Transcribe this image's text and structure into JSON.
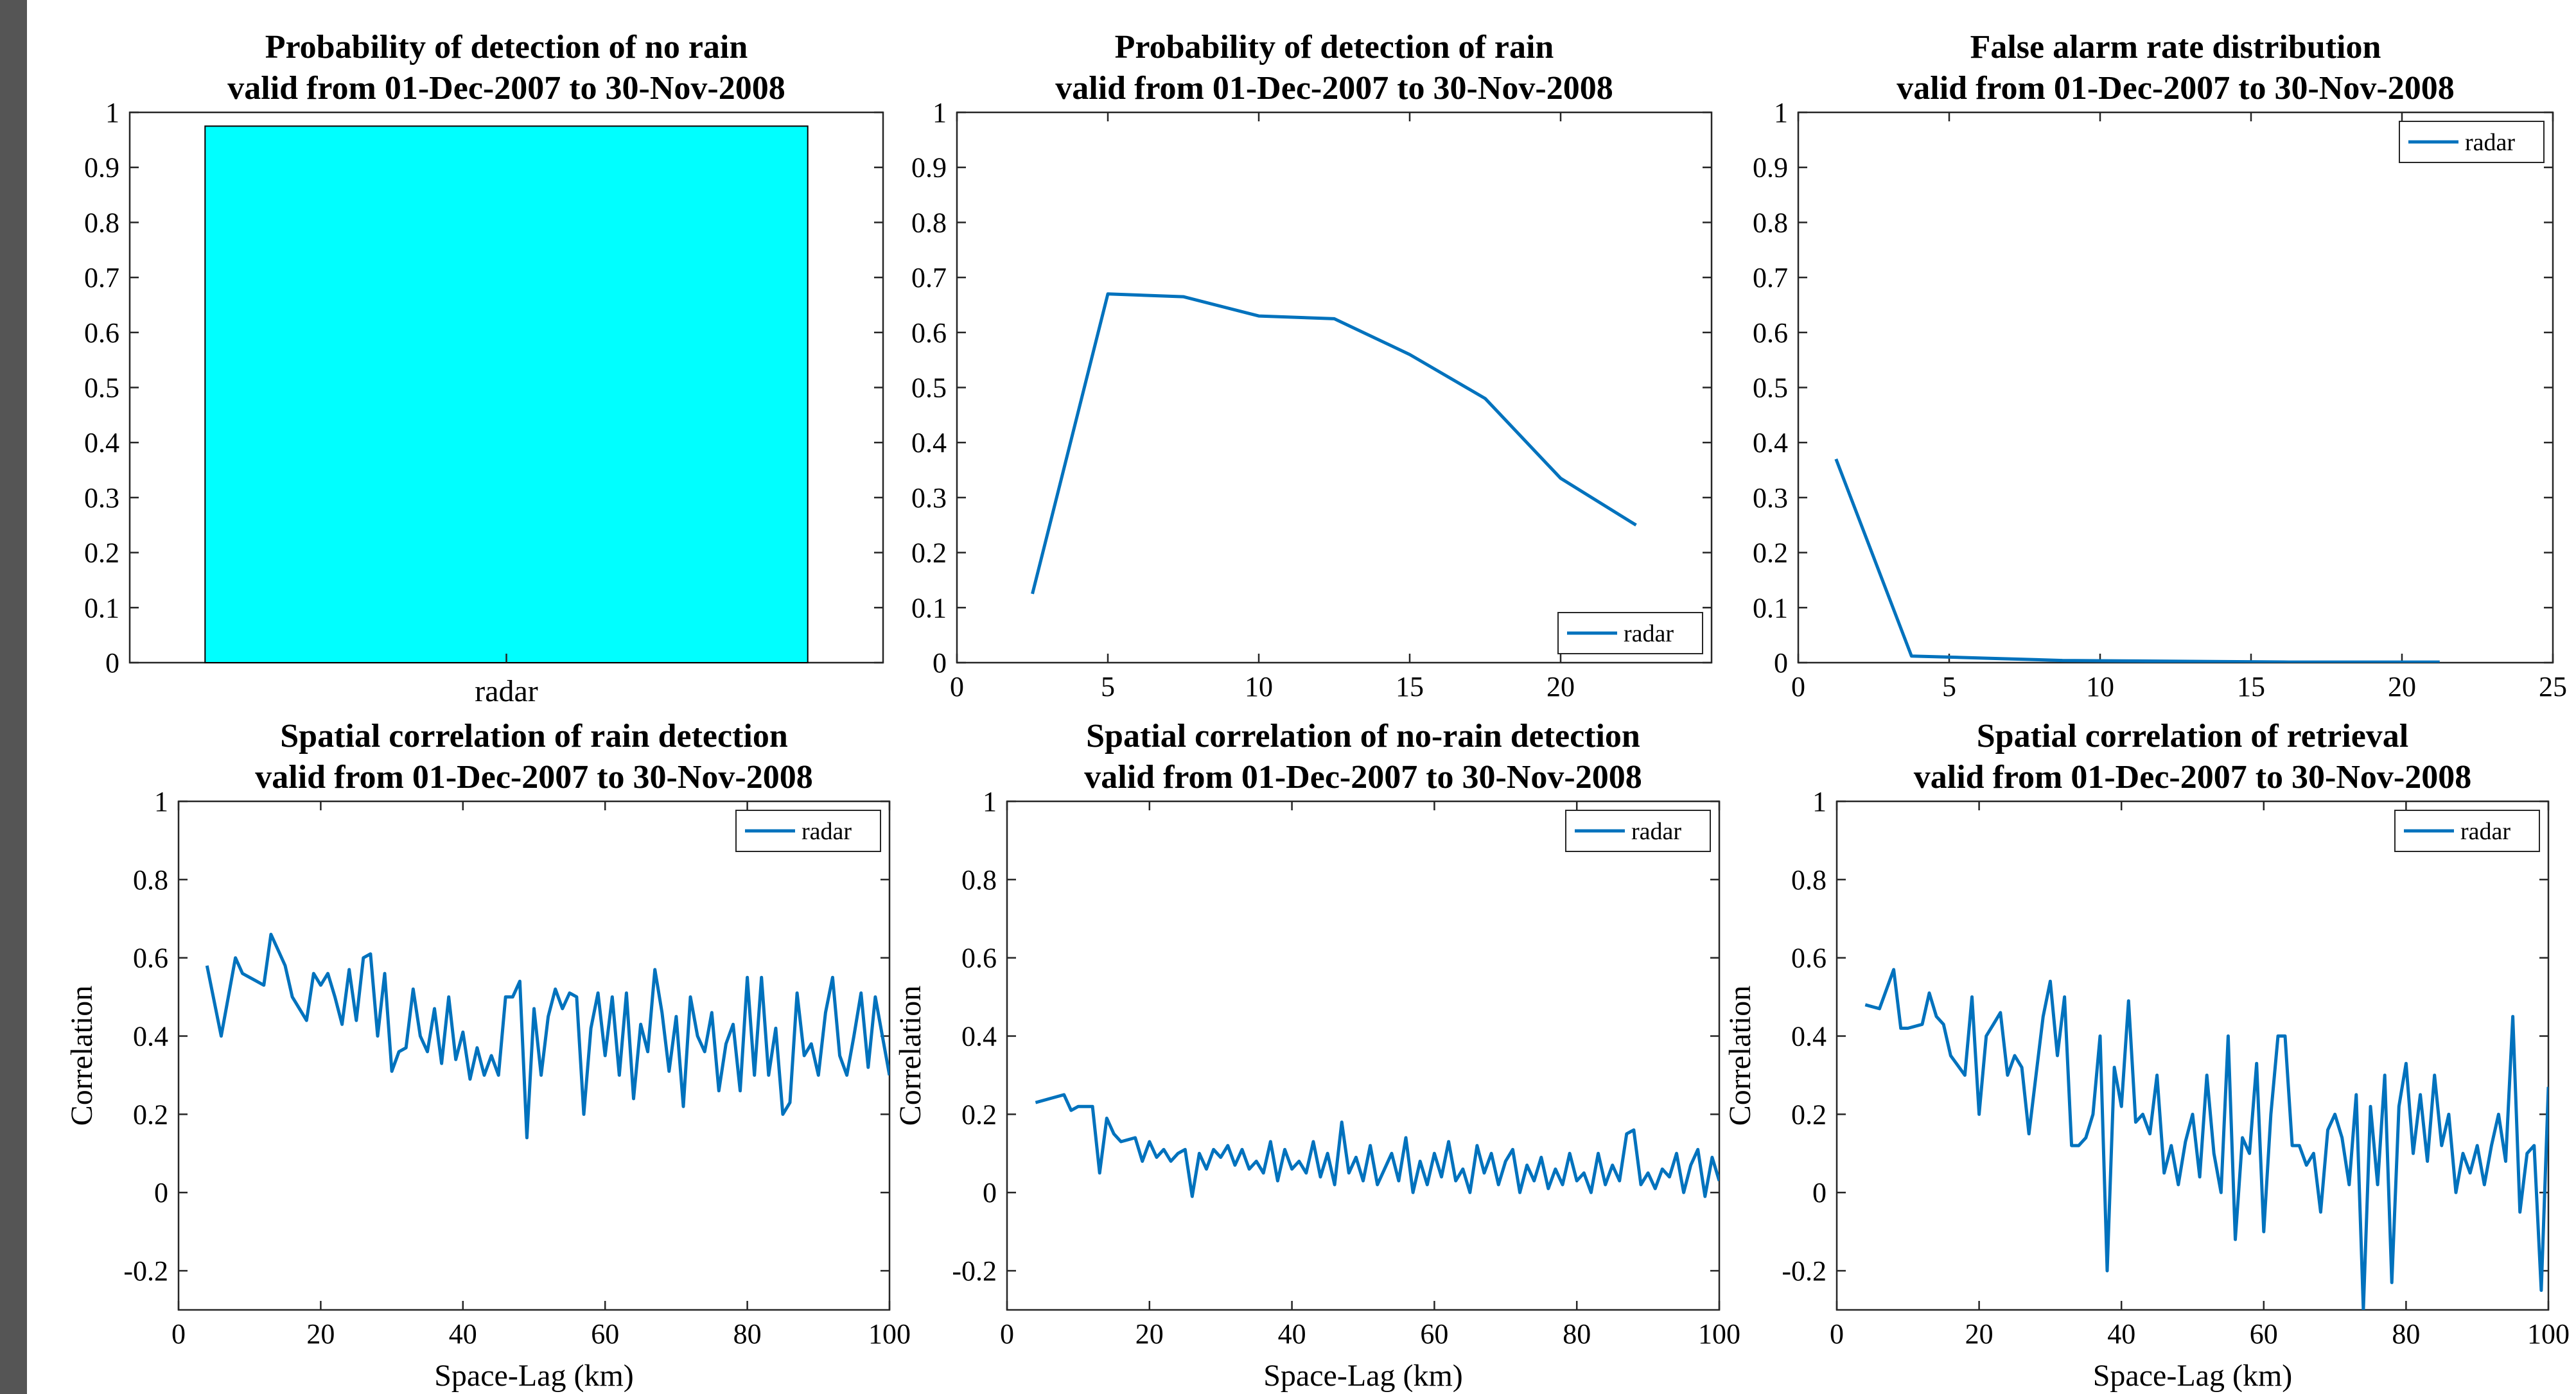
{
  "chart_data": [
    {
      "type": "bar",
      "title": [
        "Probability of detection of no rain",
        "valid from 01-Dec-2007 to 30-Nov-2008"
      ],
      "categories": [
        "radar"
      ],
      "values": [
        0.975
      ],
      "ylim": [
        0,
        1
      ],
      "yticks": [
        "0",
        "0.1",
        "0.2",
        "0.3",
        "0.4",
        "0.5",
        "0.6",
        "0.7",
        "0.8",
        "0.9",
        "1"
      ],
      "bar_color": "#00FFFF",
      "xlabel": "",
      "ylabel": ""
    },
    {
      "type": "line",
      "title": [
        "Probability of detection of rain",
        "valid from 01-Dec-2007 to 30-Nov-2008"
      ],
      "x": [
        2.5,
        5,
        7.5,
        10,
        12.5,
        15,
        17.5,
        20,
        22.5
      ],
      "series": [
        {
          "name": "radar",
          "values": [
            0.125,
            0.67,
            0.665,
            0.63,
            0.625,
            0.56,
            0.48,
            0.335,
            0.25
          ]
        }
      ],
      "xlim": [
        0,
        25
      ],
      "ylim": [
        0,
        1
      ],
      "xticks": [
        "0",
        "5",
        "10",
        "15",
        "20"
      ],
      "yticks": [
        "0",
        "0.1",
        "0.2",
        "0.3",
        "0.4",
        "0.5",
        "0.6",
        "0.7",
        "0.8",
        "0.9",
        "1"
      ],
      "legend": "bottom-right",
      "xlabel": "",
      "ylabel": ""
    },
    {
      "type": "line",
      "title": [
        "False alarm rate distribution",
        "valid from 01-Dec-2007 to 30-Nov-2008"
      ],
      "x": [
        1.25,
        3.75,
        6.25,
        8.75,
        11.25,
        13.75,
        16.25,
        18.75,
        21.25
      ],
      "series": [
        {
          "name": "radar",
          "values": [
            0.37,
            0.012,
            0.008,
            0.004,
            0.003,
            0.002,
            0.001,
            0.001,
            0.001
          ]
        }
      ],
      "xlim": [
        0,
        25
      ],
      "ylim": [
        0,
        1
      ],
      "xticks": [
        "0",
        "5",
        "10",
        "15",
        "20",
        "25"
      ],
      "yticks": [
        "0",
        "0.1",
        "0.2",
        "0.3",
        "0.4",
        "0.5",
        "0.6",
        "0.7",
        "0.8",
        "0.9",
        "1"
      ],
      "legend": "top-right",
      "xlabel": "",
      "ylabel": ""
    },
    {
      "type": "line",
      "title": [
        "Spatial correlation of rain detection",
        "valid from 01-Dec-2007 to 30-Nov-2008"
      ],
      "x": [
        4,
        6,
        8,
        9,
        10,
        12,
        13,
        14,
        15,
        16,
        18,
        19,
        20,
        21,
        22,
        23,
        24,
        25,
        26,
        27,
        28,
        29,
        30,
        31,
        32,
        33,
        34,
        35,
        36,
        37,
        38,
        39,
        40,
        41,
        42,
        43,
        44,
        45,
        46,
        47,
        48,
        49,
        50,
        51,
        52,
        53,
        54,
        55,
        56,
        57,
        58,
        59,
        60,
        61,
        62,
        63,
        64,
        65,
        66,
        67,
        68,
        69,
        70,
        71,
        72,
        73,
        74,
        75,
        76,
        77,
        78,
        79,
        80,
        81,
        82,
        83,
        84,
        85,
        86,
        87,
        88,
        89,
        90,
        91,
        92,
        93,
        94,
        95,
        96,
        97,
        98,
        99,
        100
      ],
      "series": [
        {
          "name": "radar",
          "values": [
            0.58,
            0.4,
            0.6,
            0.56,
            0.55,
            0.53,
            0.66,
            0.62,
            0.58,
            0.5,
            0.44,
            0.56,
            0.53,
            0.56,
            0.5,
            0.43,
            0.57,
            0.44,
            0.6,
            0.61,
            0.4,
            0.56,
            0.31,
            0.36,
            0.37,
            0.52,
            0.4,
            0.36,
            0.47,
            0.33,
            0.5,
            0.34,
            0.41,
            0.29,
            0.37,
            0.3,
            0.35,
            0.3,
            0.5,
            0.5,
            0.54,
            0.14,
            0.47,
            0.3,
            0.45,
            0.52,
            0.47,
            0.51,
            0.5,
            0.2,
            0.42,
            0.51,
            0.35,
            0.5,
            0.3,
            0.51,
            0.24,
            0.43,
            0.36,
            0.57,
            0.46,
            0.31,
            0.45,
            0.22,
            0.5,
            0.4,
            0.36,
            0.46,
            0.26,
            0.38,
            0.43,
            0.26,
            0.55,
            0.3,
            0.55,
            0.3,
            0.42,
            0.2,
            0.23,
            0.51,
            0.35,
            0.38,
            0.3,
            0.46,
            0.55,
            0.35,
            0.3,
            0.4,
            0.51,
            0.32,
            0.5,
            0.4,
            0.3
          ]
        }
      ],
      "xlim": [
        0,
        100
      ],
      "ylim": [
        -0.3,
        1
      ],
      "xticks": [
        "0",
        "20",
        "40",
        "60",
        "80",
        "100"
      ],
      "yticks": [
        "-0.2",
        "0",
        "0.2",
        "0.4",
        "0.6",
        "0.8",
        "1"
      ],
      "legend": "top-right",
      "xlabel": "Space-Lag (km)",
      "ylabel": "Correlation"
    },
    {
      "type": "line",
      "title": [
        "Spatial correlation of no-rain detection",
        "valid from 01-Dec-2007 to 30-Nov-2008"
      ],
      "x": [
        4,
        6,
        8,
        9,
        10,
        12,
        13,
        14,
        15,
        16,
        18,
        19,
        20,
        21,
        22,
        23,
        24,
        25,
        26,
        27,
        28,
        29,
        30,
        31,
        32,
        33,
        34,
        35,
        36,
        37,
        38,
        39,
        40,
        41,
        42,
        43,
        44,
        45,
        46,
        47,
        48,
        49,
        50,
        51,
        52,
        53,
        54,
        55,
        56,
        57,
        58,
        59,
        60,
        61,
        62,
        63,
        64,
        65,
        66,
        67,
        68,
        69,
        70,
        71,
        72,
        73,
        74,
        75,
        76,
        77,
        78,
        79,
        80,
        81,
        82,
        83,
        84,
        85,
        86,
        87,
        88,
        89,
        90,
        91,
        92,
        93,
        94,
        95,
        96,
        97,
        98,
        99,
        100
      ],
      "series": [
        {
          "name": "radar",
          "values": [
            0.23,
            0.24,
            0.25,
            0.21,
            0.22,
            0.22,
            0.05,
            0.19,
            0.15,
            0.13,
            0.14,
            0.08,
            0.13,
            0.09,
            0.11,
            0.08,
            0.1,
            0.11,
            -0.01,
            0.1,
            0.06,
            0.11,
            0.09,
            0.12,
            0.07,
            0.11,
            0.06,
            0.08,
            0.05,
            0.13,
            0.03,
            0.11,
            0.06,
            0.08,
            0.05,
            0.13,
            0.04,
            0.1,
            0.02,
            0.18,
            0.05,
            0.09,
            0.03,
            0.12,
            0.02,
            0.06,
            0.1,
            0.03,
            0.14,
            0.0,
            0.08,
            0.02,
            0.1,
            0.04,
            0.13,
            0.03,
            0.06,
            0.0,
            0.12,
            0.05,
            0.1,
            0.02,
            0.08,
            0.11,
            0.0,
            0.07,
            0.03,
            0.09,
            0.01,
            0.06,
            0.02,
            0.1,
            0.03,
            0.05,
            0.0,
            0.1,
            0.02,
            0.07,
            0.03,
            0.15,
            0.16,
            0.02,
            0.05,
            0.01,
            0.06,
            0.04,
            0.1,
            0.0,
            0.07,
            0.11,
            -0.01,
            0.09,
            0.03
          ]
        }
      ],
      "xlim": [
        0,
        100
      ],
      "ylim": [
        -0.3,
        1
      ],
      "xticks": [
        "0",
        "20",
        "40",
        "60",
        "80",
        "100"
      ],
      "yticks": [
        "-0.2",
        "0",
        "0.2",
        "0.4",
        "0.6",
        "0.8",
        "1"
      ],
      "legend": "top-right",
      "xlabel": "Space-Lag (km)",
      "ylabel": "Correlation"
    },
    {
      "type": "line",
      "title": [
        "Spatial correlation of retrieval",
        "valid from 01-Dec-2007 to 30-Nov-2008"
      ],
      "x": [
        4,
        6,
        8,
        9,
        10,
        12,
        13,
        14,
        15,
        16,
        18,
        19,
        20,
        21,
        22,
        23,
        24,
        25,
        26,
        27,
        28,
        29,
        30,
        31,
        32,
        33,
        34,
        35,
        36,
        37,
        38,
        39,
        40,
        41,
        42,
        43,
        44,
        45,
        46,
        47,
        48,
        49,
        50,
        51,
        52,
        53,
        54,
        55,
        56,
        57,
        58,
        59,
        60,
        61,
        62,
        63,
        64,
        65,
        66,
        67,
        68,
        69,
        70,
        71,
        72,
        73,
        74,
        75,
        76,
        77,
        78,
        79,
        80,
        81,
        82,
        83,
        84,
        85,
        86,
        87,
        88,
        89,
        90,
        91,
        92,
        93,
        94,
        95,
        96,
        97,
        98,
        99,
        100
      ],
      "series": [
        {
          "name": "radar",
          "values": [
            0.48,
            0.47,
            0.57,
            0.42,
            0.42,
            0.43,
            0.51,
            0.45,
            0.43,
            0.35,
            0.3,
            0.5,
            0.2,
            0.4,
            0.43,
            0.46,
            0.3,
            0.35,
            0.32,
            0.15,
            0.3,
            0.45,
            0.54,
            0.35,
            0.5,
            0.12,
            0.12,
            0.14,
            0.2,
            0.4,
            -0.2,
            0.32,
            0.22,
            0.49,
            0.18,
            0.2,
            0.15,
            0.3,
            0.05,
            0.12,
            0.02,
            0.13,
            0.2,
            0.04,
            0.3,
            0.1,
            0.0,
            0.4,
            -0.12,
            0.14,
            0.1,
            0.33,
            -0.1,
            0.2,
            0.4,
            0.4,
            0.12,
            0.12,
            0.07,
            0.1,
            -0.05,
            0.16,
            0.2,
            0.14,
            0.02,
            0.25,
            -0.3,
            0.22,
            0.02,
            0.3,
            -0.23,
            0.22,
            0.33,
            0.1,
            0.25,
            0.08,
            0.3,
            0.12,
            0.2,
            0.0,
            0.1,
            0.05,
            0.12,
            0.02,
            0.12,
            0.2,
            0.08,
            0.45,
            -0.05,
            0.1,
            0.12,
            -0.25,
            0.27
          ]
        }
      ],
      "xlim": [
        0,
        100
      ],
      "ylim": [
        -0.3,
        1
      ],
      "xticks": [
        "0",
        "20",
        "40",
        "60",
        "80",
        "100"
      ],
      "yticks": [
        "-0.2",
        "0",
        "0.2",
        "0.4",
        "0.6",
        "0.8",
        "1"
      ],
      "legend": "top-right",
      "xlabel": "Space-Lag (km)",
      "ylabel": "Correlation"
    }
  ],
  "line_color": "#0072BD",
  "left_bar_color": "#555555"
}
